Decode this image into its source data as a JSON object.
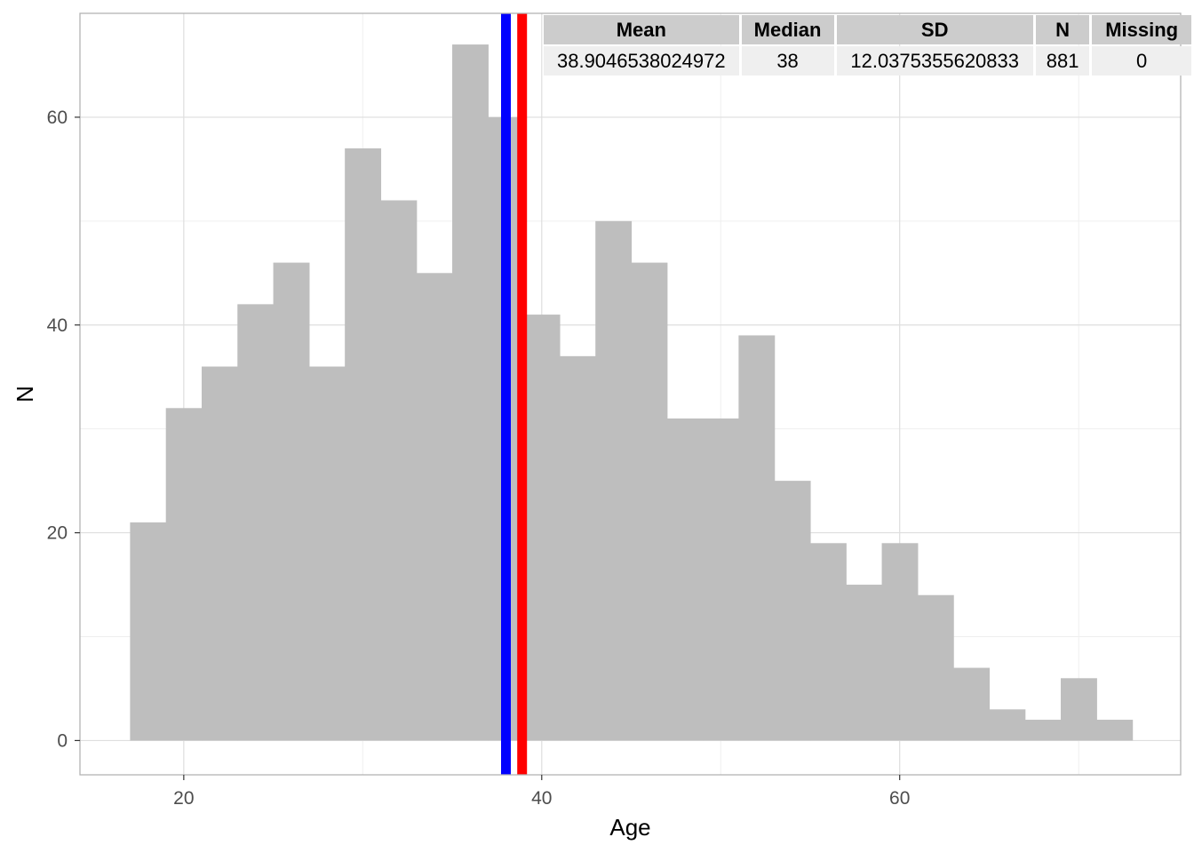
{
  "chart_data": {
    "type": "bar",
    "title": "",
    "xlabel": "Age",
    "ylabel": "N",
    "xlim": [
      14.2,
      75.7
    ],
    "ylim": [
      -3.3,
      70
    ],
    "x_ticks": [
      20,
      40,
      60
    ],
    "y_ticks": [
      0,
      20,
      40,
      60
    ],
    "grid": true,
    "bin_width": 2,
    "bins": [
      {
        "x0": 17,
        "x1": 19,
        "count": 21
      },
      {
        "x0": 19,
        "x1": 21,
        "count": 32
      },
      {
        "x0": 21,
        "x1": 23,
        "count": 36
      },
      {
        "x0": 23,
        "x1": 25,
        "count": 42
      },
      {
        "x0": 25,
        "x1": 27,
        "count": 46
      },
      {
        "x0": 27,
        "x1": 29,
        "count": 36
      },
      {
        "x0": 29,
        "x1": 31,
        "count": 57
      },
      {
        "x0": 31,
        "x1": 33,
        "count": 52
      },
      {
        "x0": 33,
        "x1": 35,
        "count": 45
      },
      {
        "x0": 35,
        "x1": 37,
        "count": 67
      },
      {
        "x0": 37,
        "x1": 39,
        "count": 60
      },
      {
        "x0": 39,
        "x1": 41,
        "count": 41
      },
      {
        "x0": 41,
        "x1": 43,
        "count": 37
      },
      {
        "x0": 43,
        "x1": 45,
        "count": 50
      },
      {
        "x0": 45,
        "x1": 47,
        "count": 46
      },
      {
        "x0": 47,
        "x1": 49,
        "count": 31
      },
      {
        "x0": 49,
        "x1": 51,
        "count": 31
      },
      {
        "x0": 51,
        "x1": 53,
        "count": 39
      },
      {
        "x0": 53,
        "x1": 55,
        "count": 25
      },
      {
        "x0": 55,
        "x1": 57,
        "count": 19
      },
      {
        "x0": 57,
        "x1": 59,
        "count": 15
      },
      {
        "x0": 59,
        "x1": 61,
        "count": 19
      },
      {
        "x0": 61,
        "x1": 63,
        "count": 14
      },
      {
        "x0": 63,
        "x1": 65,
        "count": 7
      },
      {
        "x0": 65,
        "x1": 67,
        "count": 3
      },
      {
        "x0": 67,
        "x1": 69,
        "count": 2
      },
      {
        "x0": 69,
        "x1": 71,
        "count": 6
      },
      {
        "x0": 71,
        "x1": 73,
        "count": 2
      }
    ],
    "bar_color": "#bebebe",
    "reference_lines": [
      {
        "x": 38,
        "color": "#0000ff"
      },
      {
        "x": 38.9046538024972,
        "color": "#ff0000"
      }
    ],
    "table": {
      "headers": [
        "Mean",
        "Median",
        "SD",
        "N",
        "Missing"
      ],
      "row": [
        "38.9046538024972",
        "38",
        "12.0375355620833",
        "881",
        "0"
      ]
    }
  }
}
